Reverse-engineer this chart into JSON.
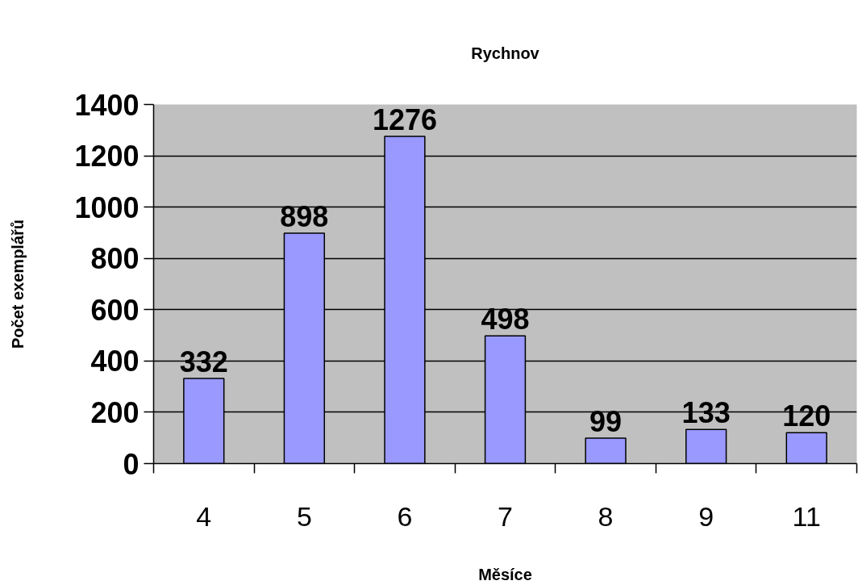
{
  "chart_data": {
    "type": "bar",
    "title": "Rychnov",
    "xlabel": "Měsíce",
    "ylabel": "Počet exemplářů",
    "categories": [
      "4",
      "5",
      "6",
      "7",
      "8",
      "9",
      "11"
    ],
    "values": [
      332,
      898,
      1276,
      498,
      99,
      133,
      120
    ],
    "color": "#9999ff",
    "ylim": [
      0,
      1400
    ],
    "yticks": [
      0,
      200,
      400,
      600,
      800,
      1000,
      1200,
      1400
    ],
    "grid": "y",
    "data_labels": true
  }
}
